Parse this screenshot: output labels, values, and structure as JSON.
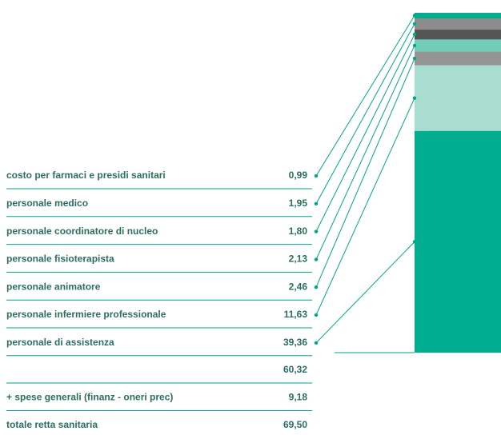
{
  "chart_data": {
    "type": "stacked-bar",
    "categories": [
      "costo per farmaci e presidi sanitari",
      "personale medico",
      "personale coordinatore di nucleo",
      "personale fisioterapista",
      "personale animatore",
      "personale infermiere professionale",
      "personale di assistenza"
    ],
    "values": [
      0.99,
      1.95,
      1.8,
      2.13,
      2.46,
      11.63,
      39.36
    ],
    "value_labels": [
      "0,99",
      "1,95",
      "1,80",
      "2,13",
      "2,46",
      "11,63",
      "39,36"
    ],
    "colors": [
      "#00ad8e",
      "#8c8c8c",
      "#555555",
      "#72cdb8",
      "#959595",
      "#a9ddd0",
      "#00ad8e"
    ],
    "summary": [
      {
        "value": "60,32"
      },
      {
        "label": "+ spese generali (finanz - oneri prec)",
        "value": "9,18"
      },
      {
        "label": "totale retta sanitaria",
        "value": "69,50"
      }
    ]
  }
}
